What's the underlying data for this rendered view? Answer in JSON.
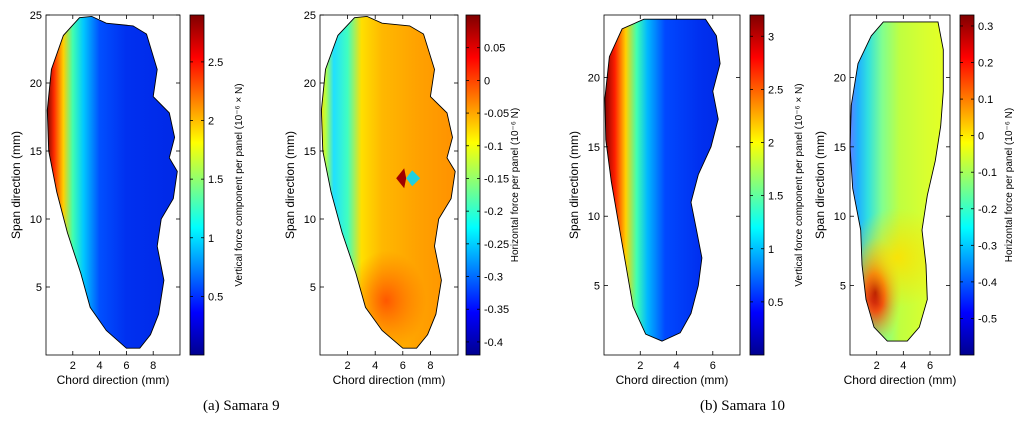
{
  "captions": [
    "(a)  Samara 9",
    "(b)  Samara 10"
  ],
  "colormap": "jet",
  "chart_data": [
    {
      "type": "heatmap",
      "xlabel": "Chord direction (mm)",
      "ylabel": "Span direction (mm)",
      "xlim": [
        0,
        10
      ],
      "ylim": [
        0,
        25
      ],
      "xticks": [
        2,
        4,
        6,
        8
      ],
      "yticks": [
        5,
        10,
        15,
        20,
        25
      ],
      "colorbar": {
        "label": "Vertical force component per panel (10⁻⁶ × N)",
        "range": [
          0,
          2.9
        ],
        "ticks": [
          0.5,
          1,
          1.5,
          2,
          2.5
        ],
        "tick_labels": [
          "0.5",
          "1",
          "1.5",
          "2",
          "2.5"
        ]
      },
      "outline": [
        [
          3.4,
          24.9
        ],
        [
          4.5,
          24.4
        ],
        [
          6.5,
          24.2
        ],
        [
          7.5,
          23.6
        ],
        [
          8.3,
          21.0
        ],
        [
          8.0,
          19.0
        ],
        [
          9.2,
          17.8
        ],
        [
          9.6,
          16.0
        ],
        [
          9.2,
          14.5
        ],
        [
          9.8,
          13.5
        ],
        [
          9.5,
          11.5
        ],
        [
          8.6,
          10.0
        ],
        [
          8.3,
          8.0
        ],
        [
          8.8,
          5.5
        ],
        [
          8.4,
          3.0
        ],
        [
          7.8,
          1.5
        ],
        [
          7.0,
          0.5
        ],
        [
          6.0,
          0.5
        ],
        [
          4.5,
          1.8
        ],
        [
          3.3,
          3.5
        ],
        [
          2.6,
          6.0
        ],
        [
          1.6,
          9.0
        ],
        [
          0.8,
          12.0
        ],
        [
          0.2,
          15.0
        ],
        [
          0.1,
          18.0
        ],
        [
          0.4,
          21.0
        ],
        [
          1.3,
          23.5
        ],
        [
          2.5,
          24.8
        ]
      ],
      "peak": {
        "kind": "ridge_near_leading_edge",
        "value_max": 2.8
      }
    },
    {
      "type": "heatmap",
      "xlabel": "Chord direction (mm)",
      "ylabel": "Span direction (mm)",
      "xlim": [
        0,
        10
      ],
      "ylim": [
        0,
        25
      ],
      "xticks": [
        2,
        4,
        6,
        8
      ],
      "yticks": [
        5,
        10,
        15,
        20,
        25
      ],
      "colorbar": {
        "label": "Horizontal force per panel (10⁻⁶ N)",
        "range": [
          -0.42,
          0.1
        ],
        "ticks": [
          -0.4,
          -0.35,
          -0.3,
          -0.25,
          -0.2,
          -0.15,
          -0.1,
          -0.05,
          0,
          0.05
        ],
        "tick_labels": [
          "-0.4",
          "-0.35",
          "-0.3",
          "-0.25",
          "-0.2",
          "-0.15",
          "-0.1",
          "-0.05",
          "0",
          "0.05"
        ]
      },
      "outline": [
        [
          3.4,
          24.9
        ],
        [
          4.5,
          24.4
        ],
        [
          6.5,
          24.2
        ],
        [
          7.5,
          23.6
        ],
        [
          8.3,
          21.0
        ],
        [
          8.0,
          19.0
        ],
        [
          9.2,
          17.8
        ],
        [
          9.6,
          16.0
        ],
        [
          9.2,
          14.5
        ],
        [
          9.8,
          13.5
        ],
        [
          9.5,
          11.5
        ],
        [
          8.6,
          10.0
        ],
        [
          8.3,
          8.0
        ],
        [
          8.8,
          5.5
        ],
        [
          8.4,
          3.0
        ],
        [
          7.8,
          1.5
        ],
        [
          7.0,
          0.5
        ],
        [
          6.0,
          0.5
        ],
        [
          4.5,
          1.8
        ],
        [
          3.3,
          3.5
        ],
        [
          2.6,
          6.0
        ],
        [
          1.6,
          9.0
        ],
        [
          0.8,
          12.0
        ],
        [
          0.2,
          15.0
        ],
        [
          0.1,
          18.0
        ],
        [
          0.4,
          21.0
        ],
        [
          1.3,
          23.5
        ],
        [
          2.5,
          24.8
        ]
      ],
      "hotspot": {
        "x": 6.1,
        "y": 13.0
      }
    },
    {
      "type": "heatmap",
      "xlabel": "Chord direction (mm)",
      "ylabel": "Span direction (mm)",
      "xlim": [
        0,
        7.5
      ],
      "ylim": [
        0,
        24.5
      ],
      "xticks": [
        2,
        4,
        6
      ],
      "yticks": [
        5,
        10,
        15,
        20
      ],
      "colorbar": {
        "label": "Vertical force component per panel (10⁻⁶ × N)",
        "range": [
          0,
          3.2
        ],
        "ticks": [
          0.5,
          1,
          1.5,
          2,
          2.5,
          3
        ],
        "tick_labels": [
          "0.5",
          "1",
          "1.5",
          "2",
          "2.5",
          "3"
        ]
      },
      "outline": [
        [
          2.2,
          24.2
        ],
        [
          5.6,
          24.2
        ],
        [
          6.2,
          23.0
        ],
        [
          6.4,
          21.0
        ],
        [
          6.0,
          19.0
        ],
        [
          6.3,
          17.0
        ],
        [
          5.9,
          15.0
        ],
        [
          5.2,
          13.0
        ],
        [
          4.8,
          11.0
        ],
        [
          5.1,
          9.0
        ],
        [
          5.4,
          7.0
        ],
        [
          5.2,
          5.0
        ],
        [
          4.8,
          3.0
        ],
        [
          4.2,
          1.6
        ],
        [
          3.2,
          1.0
        ],
        [
          2.3,
          1.5
        ],
        [
          1.6,
          3.5
        ],
        [
          1.2,
          6.5
        ],
        [
          0.8,
          9.5
        ],
        [
          0.4,
          12.5
        ],
        [
          0.1,
          15.5
        ],
        [
          0.05,
          18.5
        ],
        [
          0.3,
          21.5
        ],
        [
          1.0,
          23.5
        ]
      ],
      "peak": {
        "kind": "ridge_near_leading_edge",
        "value_max": 3.1
      }
    },
    {
      "type": "heatmap",
      "xlabel": "Chord direction (mm)",
      "ylabel": "Span direction (mm)",
      "xlim": [
        0,
        7.5
      ],
      "ylim": [
        0,
        24.5
      ],
      "xticks": [
        2,
        4,
        6
      ],
      "yticks": [
        5,
        10,
        15,
        20
      ],
      "colorbar": {
        "label": "Horizontal force per panel (10⁻⁶ N)",
        "range": [
          -0.6,
          0.33
        ],
        "ticks": [
          -0.5,
          -0.4,
          -0.3,
          -0.2,
          -0.1,
          0,
          0.1,
          0.2,
          0.3
        ],
        "tick_labels": [
          "-0.5",
          "-0.4",
          "-0.3",
          "-0.2",
          "-0.1",
          "0",
          "0.1",
          "0.2",
          "0.3"
        ]
      },
      "outline": [
        [
          1.6,
          23.0
        ],
        [
          2.5,
          24.0
        ],
        [
          6.6,
          24.0
        ],
        [
          7.0,
          22.0
        ],
        [
          7.0,
          19.0
        ],
        [
          6.8,
          16.5
        ],
        [
          6.4,
          14.0
        ],
        [
          5.8,
          11.5
        ],
        [
          5.4,
          9.0
        ],
        [
          5.7,
          6.5
        ],
        [
          5.8,
          4.0
        ],
        [
          5.2,
          2.0
        ],
        [
          4.3,
          1.0
        ],
        [
          2.8,
          1.0
        ],
        [
          1.8,
          2.0
        ],
        [
          1.2,
          4.0
        ],
        [
          0.9,
          6.5
        ],
        [
          0.8,
          9.0
        ],
        [
          0.2,
          12.0
        ],
        [
          0.0,
          15.0
        ],
        [
          0.1,
          18.0
        ],
        [
          0.6,
          21.0
        ]
      ],
      "hotspot": {
        "x": 1.6,
        "y": 4.5
      }
    }
  ]
}
